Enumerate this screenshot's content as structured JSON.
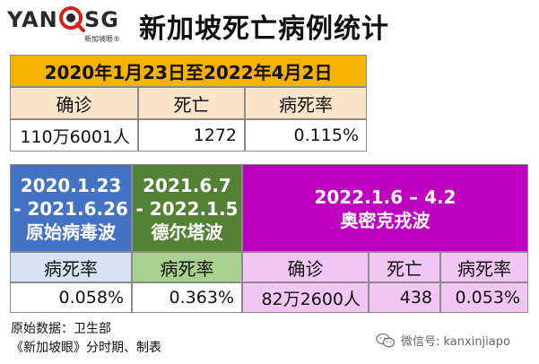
{
  "logo": {
    "left": "YAN",
    "right": "SG",
    "sub": "新加坡眼®"
  },
  "title": "新加坡死亡病例统计",
  "overall": {
    "period": "2020年1月23日至2022年4月2日",
    "headers": [
      "确诊",
      "死亡",
      "病死率"
    ],
    "values": [
      "110万6001人",
      "1272",
      "0.115%"
    ]
  },
  "phases": [
    {
      "lines": [
        "2020.1.23",
        "- 2021.6.26",
        "原始病毒波"
      ],
      "label": "病死率",
      "value": "0.058%",
      "color": "#4472c4"
    },
    {
      "lines": [
        "2021.6.7",
        "- 2022.1.5",
        "德尔塔波"
      ],
      "label": "病死率",
      "value": "0.363%",
      "color": "#548235"
    },
    {
      "lines": [
        "2022.1.6 – 4.2",
        "奥密克戎波"
      ],
      "headers": [
        "确诊",
        "死亡",
        "病死率"
      ],
      "values": [
        "82万2600人",
        "438",
        "0.053%"
      ],
      "color": "#c000c0"
    }
  ],
  "source": {
    "line1": "原始数据：卫生部",
    "line2": "《新加坡眼》分时期、制表"
  },
  "watermark": "微信号: kanxinjiapo"
}
